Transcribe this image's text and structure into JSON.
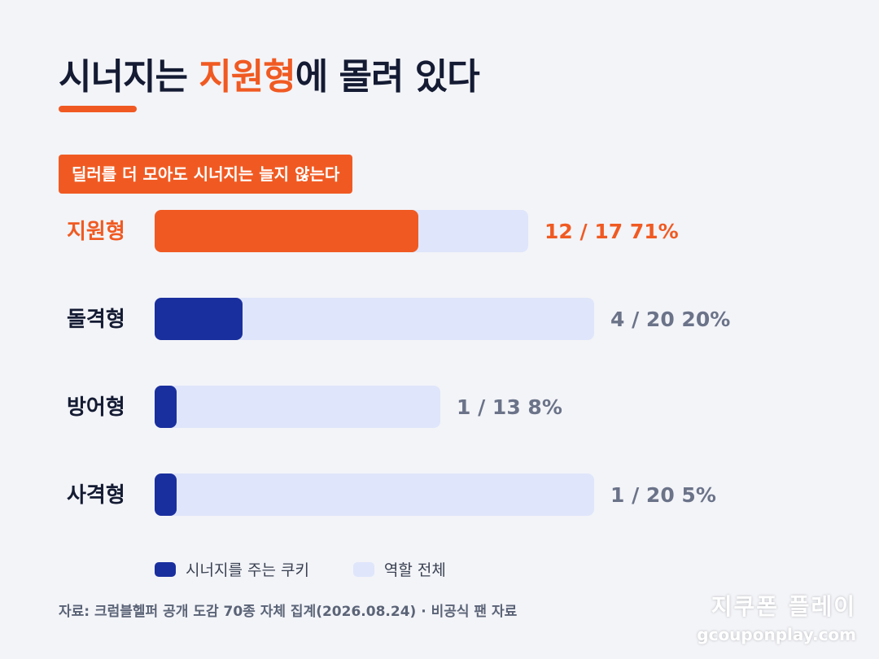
{
  "title": {
    "before": "시너지는 ",
    "highlight": "지원형",
    "after": "에 몰려 있다"
  },
  "badge": "딜러를 더 모아도 시너지는 늘지 않는다",
  "colors": {
    "accent": "#f05a22",
    "bar_dark": "#1a2f9e",
    "bar_light": "#dfe6fb",
    "label_dark": "#141b33",
    "value_gray": "#6b7389"
  },
  "chart_data": {
    "type": "bar",
    "orientation": "horizontal",
    "categories": [
      "지원형",
      "돌격형",
      "방어형",
      "사격형"
    ],
    "series": [
      {
        "name": "시너지를 주는 쿠키",
        "values": [
          12,
          4,
          1,
          1
        ]
      },
      {
        "name": "역할 전체",
        "values": [
          17,
          20,
          13,
          20
        ]
      }
    ],
    "value_labels": [
      "12 / 17 71%",
      "4 / 20 20%",
      "1 / 13 8%",
      "1 / 20 5%"
    ],
    "highlight_category": "지원형",
    "xlim": [
      0,
      20
    ],
    "grid": false,
    "legend": "bottom"
  },
  "legend": {
    "items": [
      {
        "label": "시너지를 주는 쿠키",
        "color": "#1a2f9e"
      },
      {
        "label": "역할 전체",
        "color": "#dfe6fb"
      }
    ]
  },
  "source": "자료: 크럼블헬퍼 공개 도감 70종 자체 집계(2026.08.24) · 비공식 팬 자료",
  "watermark": {
    "name": "지쿠폰 플레이",
    "url": "gcouponplay.com"
  }
}
